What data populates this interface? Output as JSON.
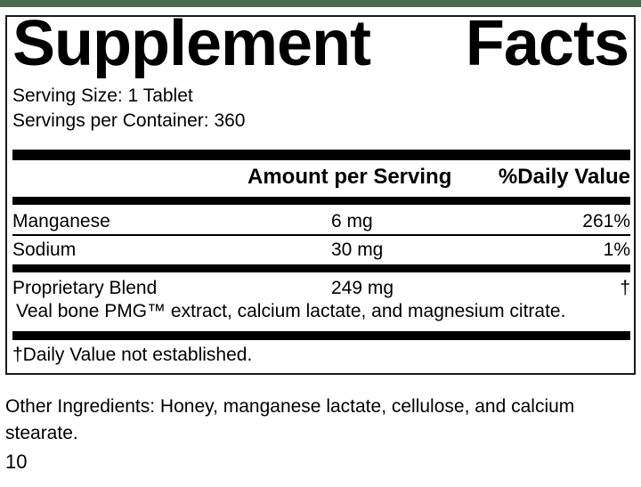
{
  "colors": {
    "brand_bar": "#4a6b4e",
    "ink": "#000000"
  },
  "label": {
    "title_left": "Supplement",
    "title_right": "Facts",
    "serving_size": "Serving Size: 1 Tablet",
    "servings_per_container": "Servings per Container: 360",
    "header": {
      "amount": "Amount per Serving",
      "daily_value": "%Daily Value"
    },
    "rows": [
      {
        "name": "Manganese",
        "amount": "6 mg",
        "dv": "261%"
      },
      {
        "name": "Sodium",
        "amount": "30 mg",
        "dv": "1%"
      },
      {
        "name": "Proprietary Blend",
        "amount": "249 mg",
        "dv": "†",
        "description": "Veal bone PMG™ extract, calcium lactate, and magnesium citrate."
      }
    ],
    "footnote": "†Daily Value not established."
  },
  "other_ingredients": "Other Ingredients: Honey, manganese lactate, cellulose, and calcium stearate.",
  "page_number": "10"
}
